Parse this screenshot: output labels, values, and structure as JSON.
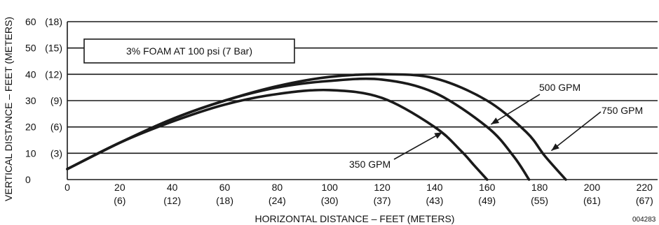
{
  "chart_data": {
    "type": "line",
    "title": "3% FOAM AT 100 psi (7 Bar)",
    "xlabel": "HORIZONTAL DISTANCE – FEET (METERS)",
    "ylabel": "VERTICAL  DISTANCE – FEET (METERS)",
    "figure_code": "004283",
    "xlim": [
      0,
      225
    ],
    "ylim": [
      0,
      60
    ],
    "grid": true,
    "x_ticks": [
      {
        "value": 0,
        "label": "0",
        "sub": ""
      },
      {
        "value": 20,
        "label": "20",
        "sub": "(6)"
      },
      {
        "value": 40,
        "label": "40",
        "sub": "(12)"
      },
      {
        "value": 60,
        "label": "60",
        "sub": "(18)"
      },
      {
        "value": 80,
        "label": "80",
        "sub": "(24)"
      },
      {
        "value": 100,
        "label": "100",
        "sub": "(30)"
      },
      {
        "value": 120,
        "label": "120",
        "sub": "(37)"
      },
      {
        "value": 140,
        "label": "140",
        "sub": "(43)"
      },
      {
        "value": 160,
        "label": "160",
        "sub": "(49)"
      },
      {
        "value": 180,
        "label": "180",
        "sub": "(55)"
      },
      {
        "value": 200,
        "label": "200",
        "sub": "(61)"
      },
      {
        "value": 220,
        "label": "220",
        "sub": "(67)"
      }
    ],
    "y_ticks": [
      {
        "value": 0,
        "label": "0",
        "sub": ""
      },
      {
        "value": 10,
        "label": "10",
        "sub": "(3)"
      },
      {
        "value": 20,
        "label": "20",
        "sub": "(6)"
      },
      {
        "value": 30,
        "label": "30",
        "sub": "(9)"
      },
      {
        "value": 40,
        "label": "40",
        "sub": "(12)"
      },
      {
        "value": 50,
        "label": "50",
        "sub": "(15)"
      },
      {
        "value": 60,
        "label": "60",
        "sub": "(18)"
      }
    ],
    "series": [
      {
        "name": "350 GPM",
        "x": [
          0,
          20,
          40,
          60,
          80,
          100,
          120,
          140,
          150,
          155,
          160
        ],
        "y": [
          4,
          14,
          22,
          28.5,
          32.5,
          34,
          31,
          20,
          11,
          5.5,
          0
        ]
      },
      {
        "name": "500 GPM",
        "x": [
          0,
          20,
          40,
          60,
          80,
          100,
          120,
          140,
          160,
          170,
          176
        ],
        "y": [
          4,
          14,
          23,
          30,
          35,
          37.5,
          38,
          33,
          20,
          9,
          0
        ]
      },
      {
        "name": "750 GPM",
        "x": [
          0,
          20,
          40,
          60,
          80,
          100,
          120,
          140,
          160,
          175,
          182,
          190
        ],
        "y": [
          4,
          14,
          23,
          30,
          35.5,
          39,
          40,
          38.5,
          30,
          18,
          9,
          0
        ]
      }
    ],
    "annotations": [
      {
        "text": "350 GPM",
        "series": "350 GPM",
        "point": [
          143,
          18
        ]
      },
      {
        "text": "500 GPM",
        "series": "500 GPM",
        "point": [
          161.5,
          21
        ]
      },
      {
        "text": "750 GPM",
        "series": "750 GPM",
        "point": [
          184.5,
          11
        ]
      }
    ]
  }
}
